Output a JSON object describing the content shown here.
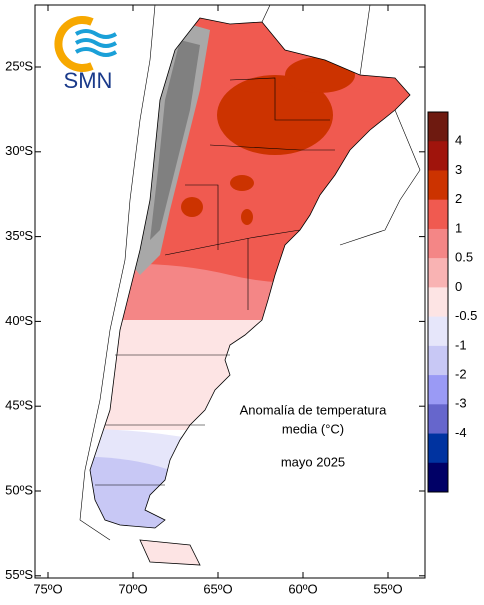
{
  "logo": {
    "text": "SMN"
  },
  "annotation": {
    "title_line1": "Anomalía de temperatura",
    "title_line2": "media (°C)",
    "period": "mayo 2025"
  },
  "latitude_labels": [
    "25ºS",
    "30ºS",
    "35ºS",
    "40ºS",
    "45ºS",
    "50ºS",
    "55ºS"
  ],
  "longitude_labels": [
    "75ºO",
    "70ºO",
    "65ºO",
    "60ºO",
    "55ºO"
  ],
  "colorbar": {
    "labels": [
      "4",
      "3",
      "2",
      "1",
      "0.5",
      "0",
      "-0.5",
      "-1",
      "-2",
      "-3",
      "-4"
    ],
    "colors": [
      "#6e1a10",
      "#a0140c",
      "#cc3300",
      "#f05a50",
      "#f48686",
      "#f9b3b3",
      "#fde4e4",
      "#e6e6fa",
      "#c8c8f5",
      "#9a9af5",
      "#6666cc",
      "#0033a0",
      "#000066"
    ]
  }
}
